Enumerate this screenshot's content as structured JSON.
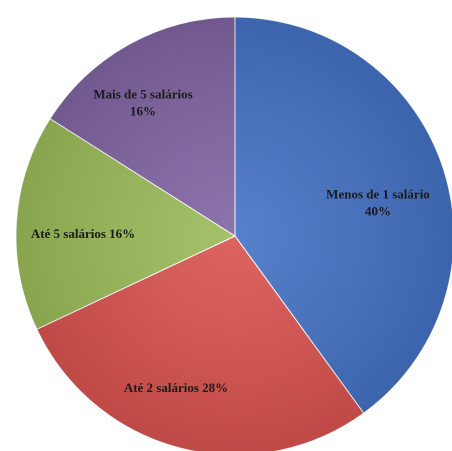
{
  "chart_data": {
    "type": "pie",
    "title": "",
    "slices": [
      {
        "label": "Menos de 1 salário",
        "value": 40,
        "value_text": "40%",
        "color": "#4472c4",
        "label_lines": [
          "Menos de 1 salário",
          "40%"
        ]
      },
      {
        "label": "Até 2 salários",
        "value": 28,
        "value_text": "28%",
        "color": "#d9534f",
        "label_lines": [
          "Até 2 salários 28%"
        ]
      },
      {
        "label": "Até 5 salários",
        "value": 16,
        "value_text": "16%",
        "color": "#9bbb59",
        "label_lines": [
          "Até 5 salários 16%"
        ]
      },
      {
        "label": "Mais de 5 salários",
        "value": 16,
        "value_text": "16%",
        "color": "#8064a2",
        "label_lines": [
          "Mais de 5 salários",
          "16%"
        ]
      }
    ],
    "start_angle_deg": 0,
    "direction": "clockwise",
    "legend": "none",
    "labels_on_slices": true
  }
}
